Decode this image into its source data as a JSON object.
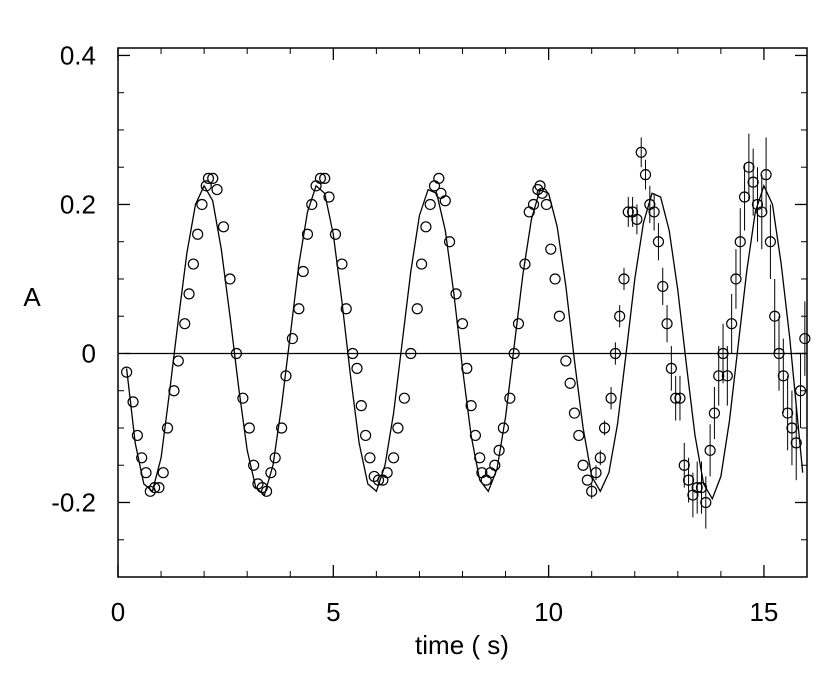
{
  "chart_data": {
    "type": "scatter",
    "title": "",
    "xlabel": "time (  s)",
    "ylabel": "A",
    "xlim": [
      0,
      16
    ],
    "ylim": [
      -0.3,
      0.41
    ],
    "x_ticks": [
      0,
      5,
      10,
      15
    ],
    "x_tick_labels": [
      "0",
      "5",
      "10",
      "15"
    ],
    "y_ticks": [
      -0.2,
      0,
      0.2,
      0.4
    ],
    "y_tick_labels": [
      "-0.2",
      "0",
      "0.2",
      "0.4"
    ],
    "grid": false,
    "reference_line": {
      "y": 0,
      "x_start": 0.15
    },
    "series": [
      {
        "kind": "fit-curve",
        "description_points": "damped sinusoid fit",
        "period": 2.56,
        "amplitude_start": 0.2,
        "amplitude_growth": 0.015,
        "x": [
          0.2,
          0.4,
          0.6,
          0.8,
          1.0,
          1.2,
          1.4,
          1.6,
          1.8,
          2.0,
          2.2,
          2.4,
          2.6,
          2.8,
          3.0,
          3.2,
          3.4,
          3.6,
          3.8,
          4.0,
          4.2,
          4.4,
          4.6,
          4.8,
          5.0,
          5.2,
          5.4,
          5.6,
          5.8,
          6.0,
          6.2,
          6.4,
          6.6,
          6.8,
          7.0,
          7.2,
          7.4,
          7.6,
          7.8,
          8.0,
          8.2,
          8.4,
          8.6,
          8.8,
          9.0,
          9.2,
          9.4,
          9.6,
          9.8,
          10.0,
          10.2,
          10.4,
          10.6,
          10.8,
          11.0,
          11.2,
          11.4,
          11.6,
          11.8,
          12.0,
          12.2,
          12.4,
          12.6,
          12.8,
          13.0,
          13.2,
          13.4,
          13.6,
          13.8,
          14.0,
          14.2,
          14.4,
          14.6,
          14.8,
          15.0,
          15.2,
          15.4,
          15.6,
          15.9
        ],
        "y": [
          -0.02,
          -0.12,
          -0.175,
          -0.185,
          -0.14,
          -0.05,
          0.045,
          0.135,
          0.2,
          0.225,
          0.205,
          0.14,
          0.05,
          -0.045,
          -0.13,
          -0.18,
          -0.19,
          -0.15,
          -0.07,
          0.025,
          0.12,
          0.19,
          0.225,
          0.215,
          0.16,
          0.07,
          -0.03,
          -0.12,
          -0.175,
          -0.185,
          -0.15,
          -0.08,
          0.015,
          0.11,
          0.185,
          0.22,
          0.215,
          0.165,
          0.08,
          -0.02,
          -0.11,
          -0.17,
          -0.185,
          -0.155,
          -0.085,
          0.01,
          0.105,
          0.18,
          0.22,
          0.215,
          0.17,
          0.09,
          -0.01,
          -0.1,
          -0.165,
          -0.185,
          -0.16,
          -0.095,
          0.0,
          0.1,
          0.175,
          0.215,
          0.21,
          0.165,
          0.085,
          -0.015,
          -0.11,
          -0.175,
          -0.195,
          -0.165,
          -0.09,
          0.01,
          0.11,
          0.19,
          0.225,
          0.2,
          0.12,
          0.02,
          -0.16
        ]
      },
      {
        "kind": "data-points",
        "marker": "open-circle",
        "points": [
          [
            0.2,
            -0.025,
            0
          ],
          [
            0.35,
            -0.065,
            0
          ],
          [
            0.45,
            -0.11,
            0
          ],
          [
            0.55,
            -0.14,
            0
          ],
          [
            0.65,
            -0.16,
            0
          ],
          [
            0.75,
            -0.185,
            0
          ],
          [
            0.85,
            -0.18,
            0
          ],
          [
            0.95,
            -0.18,
            0
          ],
          [
            1.05,
            -0.16,
            0
          ],
          [
            1.15,
            -0.1,
            0
          ],
          [
            1.3,
            -0.05,
            0
          ],
          [
            1.4,
            -0.01,
            0
          ],
          [
            1.55,
            0.04,
            0
          ],
          [
            1.65,
            0.08,
            0
          ],
          [
            1.75,
            0.12,
            0
          ],
          [
            1.85,
            0.16,
            0
          ],
          [
            1.95,
            0.2,
            0
          ],
          [
            2.05,
            0.225,
            0
          ],
          [
            2.1,
            0.235,
            0
          ],
          [
            2.2,
            0.235,
            0
          ],
          [
            2.3,
            0.22,
            0
          ],
          [
            2.45,
            0.17,
            0
          ],
          [
            2.6,
            0.1,
            0
          ],
          [
            2.75,
            0.0,
            0
          ],
          [
            2.9,
            -0.06,
            0
          ],
          [
            3.05,
            -0.1,
            0
          ],
          [
            3.15,
            -0.15,
            0
          ],
          [
            3.25,
            -0.175,
            0
          ],
          [
            3.35,
            -0.18,
            0
          ],
          [
            3.45,
            -0.185,
            0
          ],
          [
            3.55,
            -0.16,
            0
          ],
          [
            3.65,
            -0.14,
            0
          ],
          [
            3.8,
            -0.1,
            0
          ],
          [
            3.9,
            -0.03,
            0
          ],
          [
            4.05,
            0.02,
            0
          ],
          [
            4.2,
            0.06,
            0
          ],
          [
            4.3,
            0.11,
            0
          ],
          [
            4.4,
            0.16,
            0
          ],
          [
            4.5,
            0.2,
            0
          ],
          [
            4.6,
            0.225,
            0
          ],
          [
            4.7,
            0.235,
            0
          ],
          [
            4.8,
            0.235,
            0
          ],
          [
            4.9,
            0.21,
            0
          ],
          [
            5.05,
            0.16,
            0
          ],
          [
            5.2,
            0.12,
            0
          ],
          [
            5.3,
            0.06,
            0
          ],
          [
            5.45,
            0.0,
            0
          ],
          [
            5.55,
            -0.02,
            0
          ],
          [
            5.65,
            -0.07,
            0
          ],
          [
            5.75,
            -0.11,
            0
          ],
          [
            5.85,
            -0.14,
            0
          ],
          [
            5.95,
            -0.165,
            0
          ],
          [
            6.05,
            -0.17,
            0
          ],
          [
            6.15,
            -0.17,
            0
          ],
          [
            6.25,
            -0.16,
            0
          ],
          [
            6.4,
            -0.14,
            0
          ],
          [
            6.5,
            -0.1,
            0
          ],
          [
            6.65,
            -0.06,
            0
          ],
          [
            6.8,
            0.0,
            0
          ],
          [
            6.95,
            0.06,
            0
          ],
          [
            7.05,
            0.12,
            0
          ],
          [
            7.15,
            0.17,
            0
          ],
          [
            7.25,
            0.2,
            0
          ],
          [
            7.35,
            0.225,
            0
          ],
          [
            7.45,
            0.235,
            0
          ],
          [
            7.5,
            0.215,
            0
          ],
          [
            7.6,
            0.205,
            0
          ],
          [
            7.7,
            0.15,
            0
          ],
          [
            7.85,
            0.08,
            0
          ],
          [
            8.0,
            0.04,
            0
          ],
          [
            8.1,
            -0.02,
            0
          ],
          [
            8.2,
            -0.07,
            0
          ],
          [
            8.3,
            -0.11,
            0
          ],
          [
            8.4,
            -0.14,
            0
          ],
          [
            8.45,
            -0.16,
            0
          ],
          [
            8.55,
            -0.17,
            0
          ],
          [
            8.65,
            -0.16,
            0
          ],
          [
            8.75,
            -0.15,
            0
          ],
          [
            8.85,
            -0.13,
            0
          ],
          [
            8.95,
            -0.1,
            0
          ],
          [
            9.1,
            -0.06,
            0
          ],
          [
            9.2,
            0.0,
            0
          ],
          [
            9.3,
            0.04,
            0
          ],
          [
            9.45,
            0.12,
            0
          ],
          [
            9.55,
            0.19,
            0
          ],
          [
            9.65,
            0.2,
            0
          ],
          [
            9.75,
            0.22,
            0
          ],
          [
            9.8,
            0.225,
            0
          ],
          [
            9.85,
            0.215,
            0
          ],
          [
            9.95,
            0.2,
            0
          ],
          [
            10.05,
            0.14,
            0
          ],
          [
            10.15,
            0.1,
            0
          ],
          [
            10.25,
            0.05,
            0
          ],
          [
            10.4,
            -0.01,
            0
          ],
          [
            10.5,
            -0.04,
            0
          ],
          [
            10.6,
            -0.08,
            0
          ],
          [
            10.7,
            -0.11,
            0
          ],
          [
            10.8,
            -0.15,
            0
          ],
          [
            10.9,
            -0.17,
            0
          ],
          [
            11.0,
            -0.185,
            0.01
          ],
          [
            11.1,
            -0.16,
            0.01
          ],
          [
            11.2,
            -0.14,
            0.01
          ],
          [
            11.3,
            -0.1,
            0.01
          ],
          [
            11.45,
            -0.06,
            0.015
          ],
          [
            11.55,
            0.0,
            0.015
          ],
          [
            11.65,
            0.05,
            0.015
          ],
          [
            11.75,
            0.1,
            0.015
          ],
          [
            11.85,
            0.19,
            0.02
          ],
          [
            11.95,
            0.19,
            0.02
          ],
          [
            12.05,
            0.18,
            0.02
          ],
          [
            12.15,
            0.27,
            0.02
          ],
          [
            12.25,
            0.24,
            0.02
          ],
          [
            12.35,
            0.2,
            0.025
          ],
          [
            12.45,
            0.19,
            0.025
          ],
          [
            12.55,
            0.15,
            0.025
          ],
          [
            12.65,
            0.09,
            0.025
          ],
          [
            12.75,
            0.04,
            0.025
          ],
          [
            12.85,
            -0.02,
            0.03
          ],
          [
            12.95,
            -0.06,
            0.03
          ],
          [
            13.05,
            -0.06,
            0.03
          ],
          [
            13.15,
            -0.15,
            0.03
          ],
          [
            13.25,
            -0.17,
            0.03
          ],
          [
            13.35,
            -0.19,
            0.03
          ],
          [
            13.45,
            -0.18,
            0.035
          ],
          [
            13.55,
            -0.18,
            0.035
          ],
          [
            13.65,
            -0.2,
            0.035
          ],
          [
            13.75,
            -0.13,
            0.035
          ],
          [
            13.85,
            -0.08,
            0.035
          ],
          [
            13.95,
            -0.03,
            0.04
          ],
          [
            14.05,
            0.0,
            0.04
          ],
          [
            14.15,
            -0.03,
            0.04
          ],
          [
            14.25,
            0.04,
            0.04
          ],
          [
            14.35,
            0.1,
            0.04
          ],
          [
            14.45,
            0.15,
            0.045
          ],
          [
            14.55,
            0.21,
            0.045
          ],
          [
            14.65,
            0.25,
            0.045
          ],
          [
            14.75,
            0.23,
            0.045
          ],
          [
            14.85,
            0.2,
            0.05
          ],
          [
            14.95,
            0.19,
            0.05
          ],
          [
            15.05,
            0.24,
            0.05
          ],
          [
            15.15,
            0.15,
            0.05
          ],
          [
            15.25,
            0.05,
            0.05
          ],
          [
            15.35,
            0.0,
            0.05
          ],
          [
            15.45,
            -0.03,
            0.05
          ],
          [
            15.55,
            -0.08,
            0.05
          ],
          [
            15.65,
            -0.1,
            0.05
          ],
          [
            15.75,
            -0.12,
            0.05
          ],
          [
            15.85,
            -0.05,
            0.05
          ],
          [
            15.95,
            0.02,
            0.05
          ]
        ]
      }
    ]
  }
}
